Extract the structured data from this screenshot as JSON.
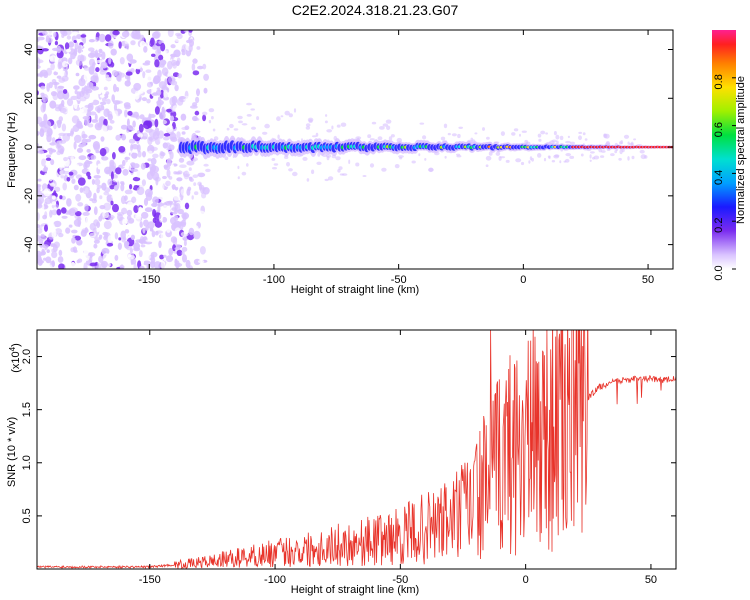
{
  "title": "C2E2.2024.318.21.23.G07",
  "chart_data": [
    {
      "type": "heatmap",
      "title": "C2E2.2024.318.21.23.G07",
      "xlabel": "Height of straight line (km)",
      "ylabel": "Frequency (Hz)",
      "xlim": [
        -195,
        60
      ],
      "ylim": [
        -50,
        48
      ],
      "xticks": [
        -150,
        -100,
        -50,
        0,
        50
      ],
      "yticks": [
        -40,
        -20,
        0,
        20,
        40
      ],
      "ridge_frequency_hz": 0,
      "noise_region_x_max_km": -135,
      "colorbar": {
        "label": "Normalized spectral amplitude",
        "range": [
          0.0,
          1.0
        ],
        "ticks": [
          "0.0",
          "0.2",
          "0.4",
          "0.6",
          "0.8"
        ],
        "tick_values": [
          0.0,
          0.2,
          0.4,
          0.6,
          0.8
        ]
      }
    },
    {
      "type": "line",
      "xlabel": "Height of straight line (km)",
      "ylabel": "SNR (10 * v/v)",
      "scale_label": "(x10",
      "scale_exponent": "4",
      "xlim": [
        -195,
        60
      ],
      "ylim": [
        0,
        2.25
      ],
      "xticks": [
        -150,
        -100,
        -50,
        0,
        50
      ],
      "yticks": [
        0.5,
        1.0,
        1.5,
        2.0
      ],
      "ytick_labels": [
        "0.5",
        "1.0",
        "1.5",
        "2.0"
      ],
      "line_color": "#e8332a",
      "series": [
        {
          "x": [
            -195,
            -180,
            -160,
            -150,
            -140,
            -130,
            -120,
            -110,
            -100,
            -90,
            -80,
            -70,
            -60,
            -50,
            -40,
            -30,
            -25,
            -20,
            -15,
            -10,
            -5,
            0,
            5,
            10,
            15,
            20,
            25,
            30,
            35,
            40,
            45,
            50,
            55,
            60
          ],
          "values": [
            0.02,
            0.02,
            0.02,
            0.02,
            0.04,
            0.06,
            0.09,
            0.12,
            0.15,
            0.18,
            0.21,
            0.24,
            0.27,
            0.31,
            0.38,
            0.46,
            0.55,
            0.66,
            0.82,
            1.0,
            1.15,
            1.18,
            1.25,
            1.35,
            1.42,
            1.55,
            1.62,
            1.72,
            1.76,
            1.78,
            1.79,
            1.79,
            1.78,
            1.79
          ],
          "peak": {
            "x": -14,
            "y": 2.25
          }
        }
      ]
    }
  ]
}
